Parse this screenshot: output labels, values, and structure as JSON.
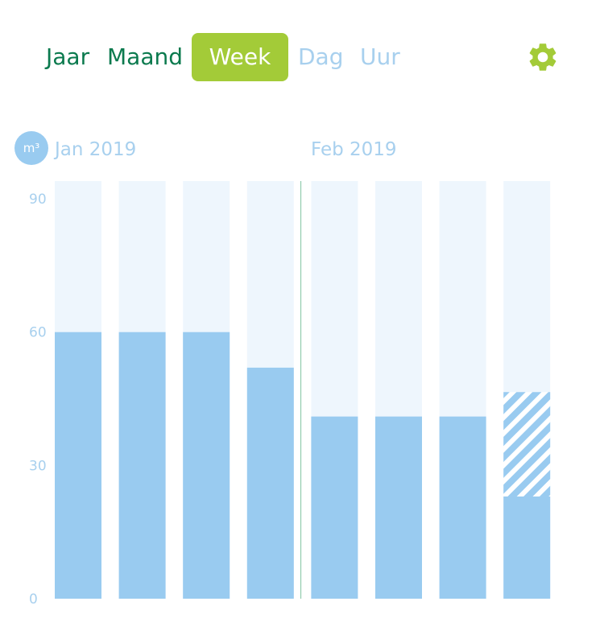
{
  "colors": {
    "accent_green": "#a3cb38",
    "tab_green": "#0b7a4e",
    "tab_inactive": "#a8d0ee",
    "bar_fill": "#99cbf0",
    "bar_background": "#eef6fd",
    "axis_text": "#a8d0ee",
    "divider": "#7fc3a0"
  },
  "tabs": [
    {
      "label": "Jaar",
      "active": false
    },
    {
      "label": "Maand",
      "active": false
    },
    {
      "label": "Week",
      "active": true
    },
    {
      "label": "Dag",
      "active": false
    },
    {
      "label": "Uur",
      "active": false
    }
  ],
  "settings_icon": "gear-icon",
  "unit_label": "m³",
  "chart_data": {
    "type": "bar",
    "month_labels": [
      "Jan 2019",
      "Feb 2019"
    ],
    "yticks": [
      0,
      30,
      60,
      90
    ],
    "ylim": [
      0,
      94
    ],
    "values": [
      60,
      60,
      60,
      52,
      41,
      41,
      41,
      23
    ],
    "forecast_extra": [
      0,
      0,
      0,
      0,
      0,
      0,
      0,
      23.5
    ],
    "divider_after_index": 3,
    "grid": false
  }
}
